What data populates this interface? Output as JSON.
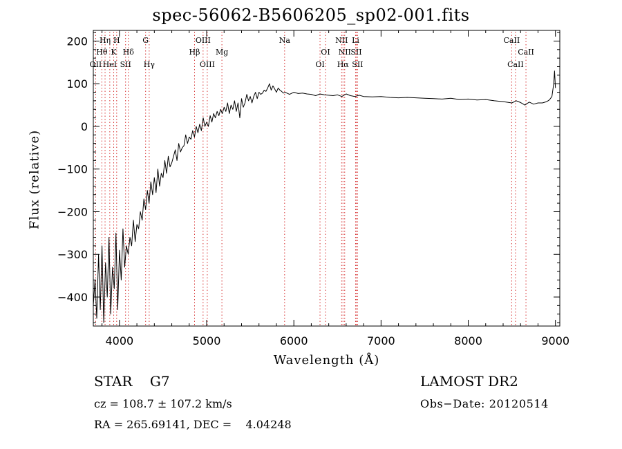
{
  "chart_data": {
    "type": "line",
    "title": "spec-56062-B5606205_sp02-001.fits",
    "xlabel": "Wavelength (Å)",
    "ylabel": "Flux (relative)",
    "xlim": [
      3700,
      9050
    ],
    "ylim": [
      -468,
      225
    ],
    "xticks": [
      4000,
      5000,
      6000,
      7000,
      8000,
      9000
    ],
    "yticks": [
      -400,
      -300,
      -200,
      -100,
      0,
      100,
      200
    ],
    "grid": false,
    "spectral_lines": [
      {
        "label": "OII",
        "wavelength": 3727,
        "row": 3
      },
      {
        "label": "Hθ",
        "wavelength": 3798,
        "row": 2
      },
      {
        "label": "Hη",
        "wavelength": 3835,
        "row": 1
      },
      {
        "label": "HeI",
        "wavelength": 3889,
        "row": 3
      },
      {
        "label": "K",
        "wavelength": 3934,
        "row": 2
      },
      {
        "label": "H",
        "wavelength": 3968,
        "row": 1
      },
      {
        "label": "SII",
        "wavelength": 4070,
        "row": 3
      },
      {
        "label": "Hδ",
        "wavelength": 4102,
        "row": 2
      },
      {
        "label": "G",
        "wavelength": 4300,
        "row": 1
      },
      {
        "label": "Hγ",
        "wavelength": 4341,
        "row": 3
      },
      {
        "label": "Hβ",
        "wavelength": 4861,
        "row": 2
      },
      {
        "label": "OIII",
        "wavelength": 4959,
        "row": 1
      },
      {
        "label": "OIII",
        "wavelength": 5007,
        "row": 3
      },
      {
        "label": "Mg",
        "wavelength": 5175,
        "row": 2
      },
      {
        "label": "Na",
        "wavelength": 5894,
        "row": 1
      },
      {
        "label": "OI",
        "wavelength": 6300,
        "row": 3
      },
      {
        "label": "OI",
        "wavelength": 6363,
        "row": 2
      },
      {
        "label": "NII",
        "wavelength": 6548,
        "row": 1
      },
      {
        "label": "Hα",
        "wavelength": 6563,
        "row": 3
      },
      {
        "label": "NII",
        "wavelength": 6583,
        "row": 2
      },
      {
        "label": "Li",
        "wavelength": 6708,
        "row": 1
      },
      {
        "label": "SII",
        "wavelength": 6716,
        "row": 2
      },
      {
        "label": "SII",
        "wavelength": 6731,
        "row": 3
      },
      {
        "label": "CaII",
        "wavelength": 8498,
        "row": 1
      },
      {
        "label": "CaII",
        "wavelength": 8542,
        "row": 3
      },
      {
        "label": "CaII",
        "wavelength": 8662,
        "row": 2
      }
    ],
    "series": [
      {
        "x": [
          3700,
          3720,
          3740,
          3760,
          3780,
          3800,
          3820,
          3840,
          3860,
          3880,
          3900,
          3920,
          3940,
          3960,
          3980,
          4000,
          4020,
          4040,
          4060,
          4080,
          4100,
          4120,
          4140,
          4160,
          4180,
          4200,
          4220,
          4240,
          4260,
          4280,
          4300,
          4320,
          4340,
          4360,
          4380,
          4400,
          4420,
          4440,
          4460,
          4480,
          4500,
          4520,
          4540,
          4560,
          4580,
          4600,
          4620,
          4640,
          4660,
          4680,
          4700,
          4720,
          4740,
          4760,
          4780,
          4800,
          4820,
          4840,
          4860,
          4880,
          4900,
          4920,
          4940,
          4960,
          4980,
          5000,
          5020,
          5040,
          5060,
          5080,
          5100,
          5120,
          5140,
          5160,
          5180,
          5200,
          5220,
          5240,
          5260,
          5280,
          5300,
          5320,
          5340,
          5360,
          5380,
          5400,
          5420,
          5440,
          5460,
          5480,
          5500,
          5520,
          5540,
          5560,
          5580,
          5600,
          5620,
          5640,
          5660,
          5680,
          5700,
          5720,
          5740,
          5760,
          5780,
          5800,
          5820,
          5840,
          5860,
          5880,
          5900,
          5950,
          6000,
          6050,
          6100,
          6150,
          6200,
          6250,
          6300,
          6350,
          6400,
          6450,
          6500,
          6550,
          6600,
          6650,
          6700,
          6750,
          6800,
          6900,
          7000,
          7100,
          7200,
          7300,
          7400,
          7500,
          7600,
          7700,
          7800,
          7900,
          8000,
          8100,
          8200,
          8300,
          8400,
          8500,
          8550,
          8600,
          8650,
          8700,
          8750,
          8800,
          8850,
          8900,
          8930,
          8960,
          8980,
          8990,
          9000
        ],
        "y": [
          -420,
          -360,
          -450,
          -300,
          -430,
          -280,
          -460,
          -320,
          -400,
          -260,
          -440,
          -330,
          -380,
          -250,
          -430,
          -290,
          -360,
          -240,
          -330,
          -280,
          -300,
          -260,
          -280,
          -220,
          -270,
          -230,
          -240,
          -200,
          -220,
          -170,
          -195,
          -150,
          -180,
          -130,
          -160,
          -120,
          -155,
          -100,
          -140,
          -110,
          -120,
          -80,
          -110,
          -70,
          -95,
          -85,
          -70,
          -55,
          -80,
          -40,
          -60,
          -50,
          -45,
          -20,
          -40,
          -25,
          -30,
          -10,
          -25,
          0,
          -15,
          5,
          -10,
          20,
          0,
          10,
          0,
          25,
          10,
          30,
          20,
          35,
          25,
          40,
          30,
          45,
          35,
          55,
          30,
          50,
          40,
          60,
          35,
          55,
          20,
          65,
          45,
          55,
          75,
          60,
          70,
          55,
          70,
          80,
          65,
          80,
          75,
          78,
          85,
          82,
          90,
          100,
          85,
          95,
          88,
          80,
          90,
          85,
          82,
          78,
          80,
          75,
          80,
          77,
          78,
          76,
          75,
          72,
          76,
          74,
          73,
          72,
          74,
          70,
          76,
          72,
          70,
          73,
          70,
          69,
          70,
          68,
          67,
          68,
          67,
          66,
          65,
          64,
          66,
          63,
          64,
          62,
          63,
          60,
          58,
          55,
          60,
          56,
          50,
          57,
          52,
          55,
          55,
          58,
          62,
          70,
          100,
          130,
          90
        ]
      }
    ]
  },
  "footer": {
    "object_class": "STAR    G7",
    "survey": "LAMOST DR2",
    "redshift": "cz = 108.7 ± 107.2 km/s",
    "obs_date": "Obs−Date: 20120514",
    "coordinates": "RA = 265.69141, DEC =    4.04248"
  },
  "colors": {
    "spectrum": "#000000",
    "line_markers": "#d63030",
    "axes": "#000000",
    "background": "#ffffff"
  }
}
